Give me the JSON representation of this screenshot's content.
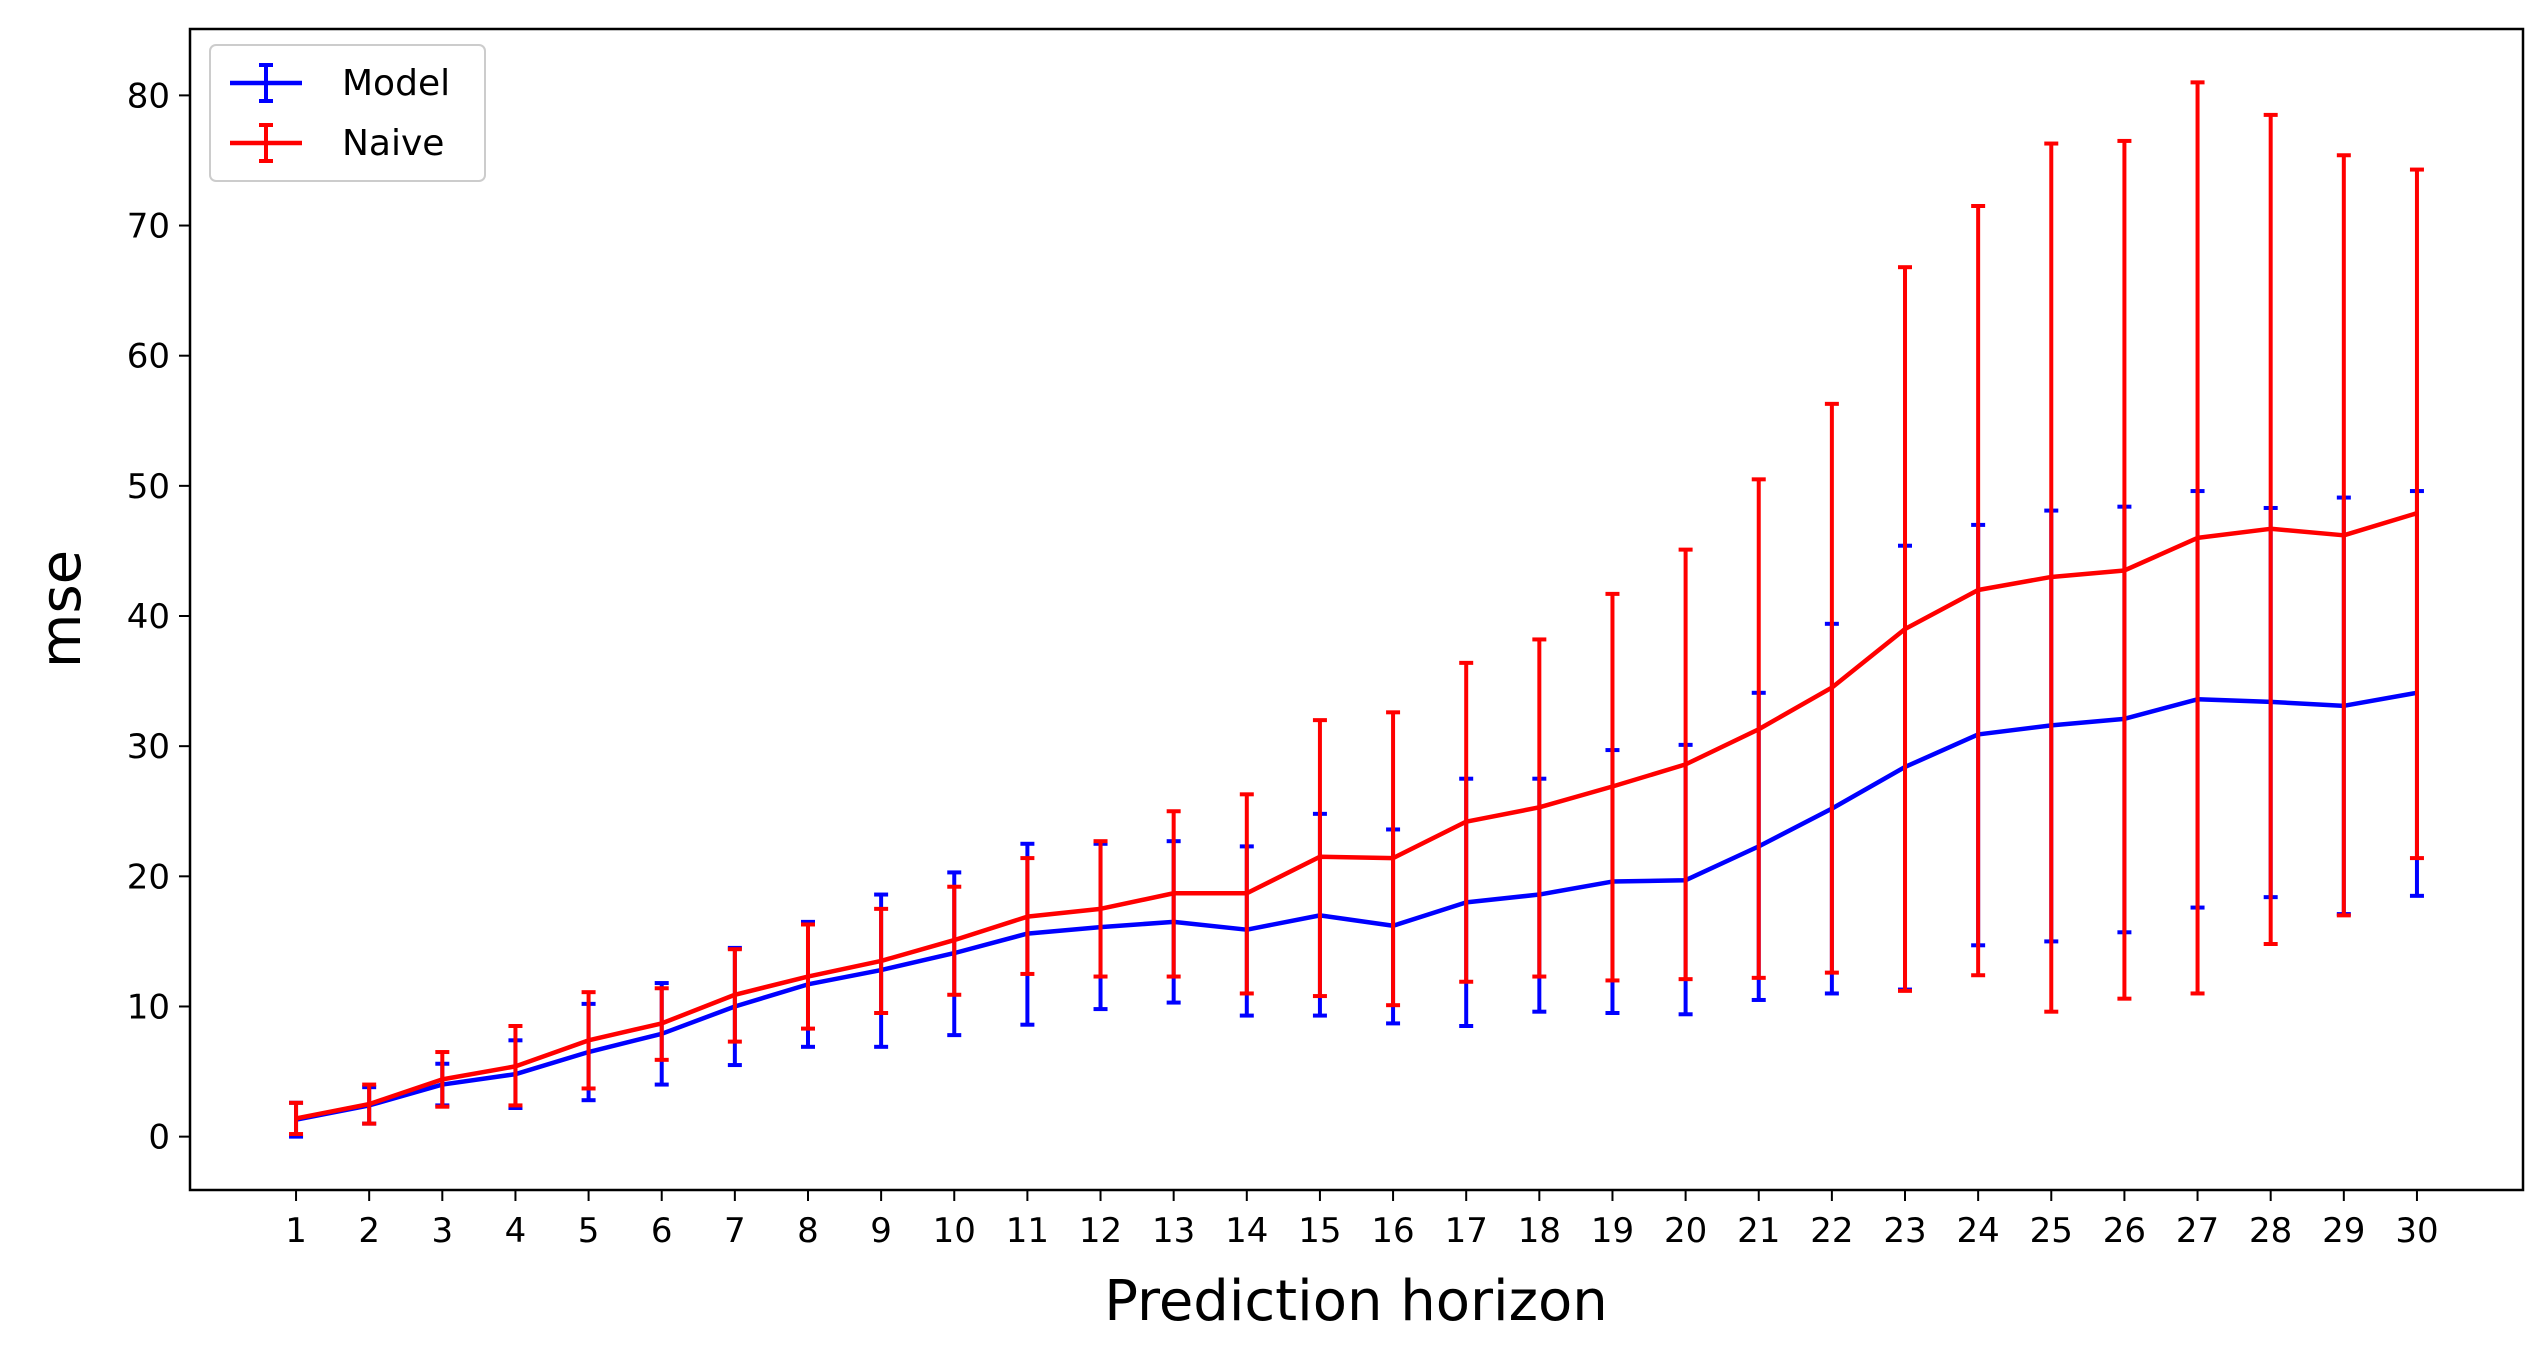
{
  "chart_data": {
    "type": "line",
    "subtype": "errorbar",
    "title": "",
    "xlabel": "Prediction horizon",
    "ylabel": "mse",
    "x": [
      1,
      2,
      3,
      4,
      5,
      6,
      7,
      8,
      9,
      10,
      11,
      12,
      13,
      14,
      15,
      16,
      17,
      18,
      19,
      20,
      21,
      22,
      23,
      24,
      25,
      26,
      27,
      28,
      29,
      30
    ],
    "xlim": [
      -0.45,
      31.45
    ],
    "ylim": [
      -4.1,
      85.1
    ],
    "yticks": [
      0,
      10,
      20,
      30,
      40,
      50,
      60,
      70,
      80
    ],
    "grid": false,
    "legend_position": "top-left",
    "series": [
      {
        "name": "Model",
        "color": "#0000ff",
        "values": [
          1.3,
          2.4,
          4.0,
          4.8,
          6.5,
          7.9,
          10.0,
          11.7,
          12.8,
          14.1,
          15.6,
          16.1,
          16.5,
          15.9,
          17.0,
          16.2,
          18.0,
          18.6,
          19.6,
          19.7,
          22.3,
          25.2,
          28.4,
          30.9,
          31.6,
          32.1,
          33.6,
          33.4,
          33.1,
          34.1
        ],
        "lower": [
          0.0,
          1.0,
          2.4,
          2.2,
          2.8,
          4.0,
          5.5,
          6.9,
          6.9,
          7.8,
          8.6,
          9.8,
          10.3,
          9.3,
          9.3,
          8.7,
          8.5,
          9.6,
          9.5,
          9.4,
          10.5,
          11.0,
          11.3,
          14.7,
          15.0,
          15.7,
          17.6,
          18.4,
          17.1,
          18.5
        ],
        "upper": [
          2.6,
          3.8,
          5.6,
          7.4,
          10.2,
          11.8,
          14.5,
          16.5,
          18.6,
          20.3,
          22.5,
          22.5,
          22.7,
          22.3,
          24.8,
          23.6,
          27.5,
          27.5,
          29.7,
          30.1,
          34.1,
          39.4,
          45.4,
          47.0,
          48.1,
          48.4,
          49.6,
          48.3,
          49.1,
          49.6
        ]
      },
      {
        "name": "Naive",
        "color": "#ff0000",
        "values": [
          1.4,
          2.5,
          4.4,
          5.4,
          7.4,
          8.7,
          10.9,
          12.3,
          13.5,
          15.1,
          16.9,
          17.5,
          18.7,
          18.7,
          21.5,
          21.4,
          24.2,
          25.3,
          26.9,
          28.6,
          31.3,
          34.5,
          39.0,
          42.0,
          43.0,
          43.5,
          46.0,
          46.7,
          46.2,
          47.9
        ],
        "lower": [
          0.2,
          1.0,
          2.3,
          2.4,
          3.7,
          5.9,
          7.3,
          8.3,
          9.5,
          10.9,
          12.5,
          12.3,
          12.3,
          11.0,
          10.8,
          10.1,
          11.9,
          12.3,
          12.0,
          12.1,
          12.2,
          12.6,
          11.2,
          12.4,
          9.6,
          10.6,
          11.0,
          14.8,
          17.0,
          21.4
        ],
        "upper": [
          2.6,
          4.0,
          6.5,
          8.5,
          11.1,
          11.4,
          14.4,
          16.3,
          17.5,
          19.2,
          21.4,
          22.7,
          25.0,
          26.3,
          32.0,
          32.6,
          36.4,
          38.2,
          41.7,
          45.1,
          50.5,
          56.3,
          66.8,
          71.5,
          76.3,
          76.5,
          81.0,
          78.5,
          75.4,
          74.3
        ]
      }
    ]
  }
}
